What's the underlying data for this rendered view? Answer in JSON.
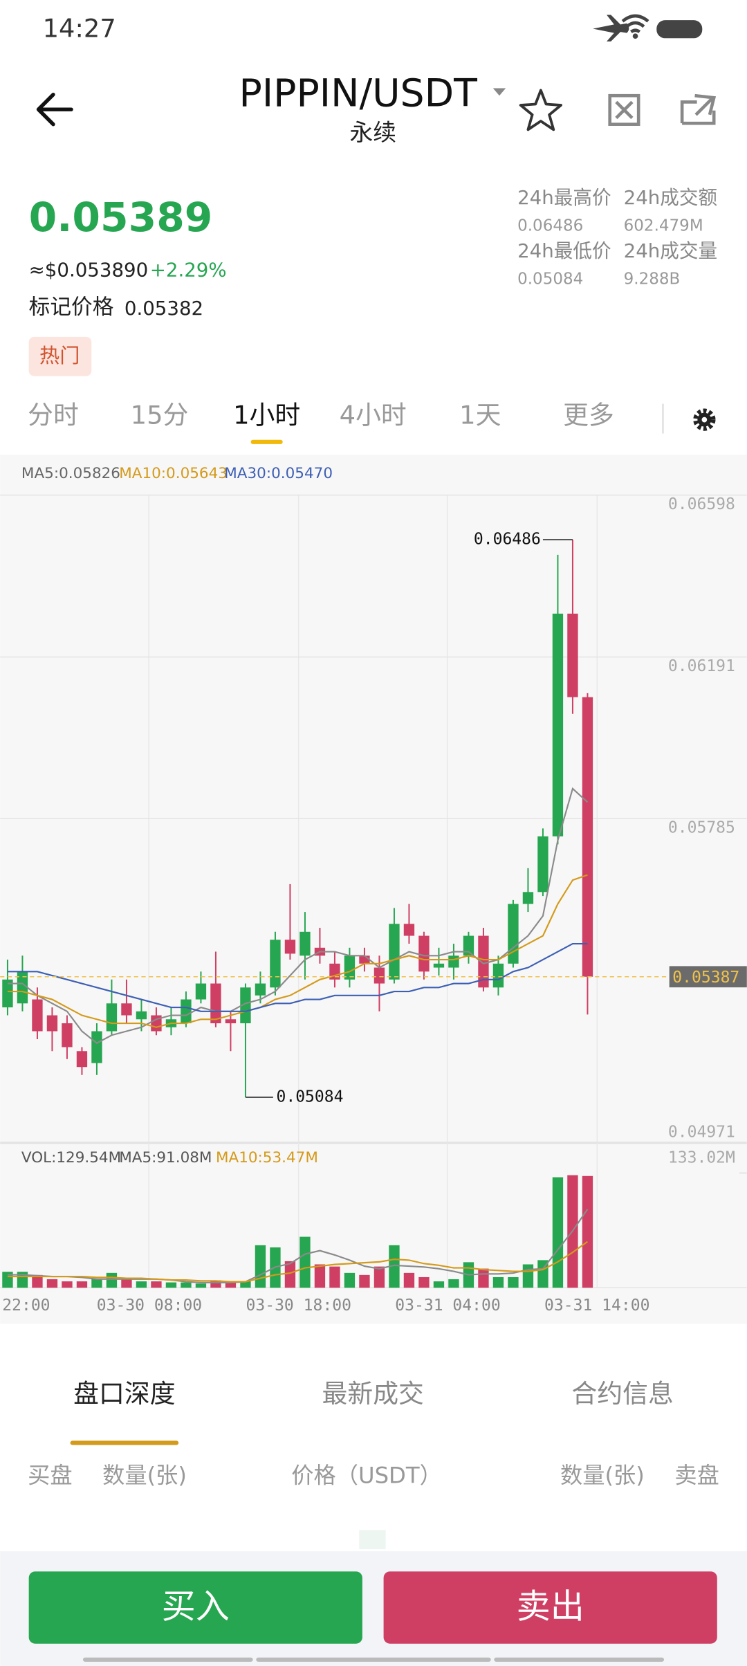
{
  "status_bar": {
    "time": "14:27"
  },
  "header": {
    "pair": "PIPPIN/USDT",
    "subtitle": "永续"
  },
  "price": {
    "last": "0.05389",
    "usd": "≈$0.053890",
    "change": "+2.29%",
    "mark_label": "标记价格",
    "mark_value": "0.05382",
    "tag": "热门"
  },
  "stats": [
    {
      "label": "24h最高价",
      "value": "0.06486"
    },
    {
      "label": "24h成交额",
      "value": "602.479M"
    },
    {
      "label": "24h最低价",
      "value": "0.05084"
    },
    {
      "label": "24h成交量",
      "value": "9.288B"
    }
  ],
  "intervals": [
    "分时",
    "15分",
    "1小时",
    "4小时",
    "1天",
    "更多"
  ],
  "active_interval": 2,
  "chart_data": {
    "type": "candlestick",
    "x_labels": [
      "22:00",
      "03-30 08:00",
      "03-30 18:00",
      "03-31 04:00",
      "03-31 14:00"
    ],
    "open": [
      0.0531,
      0.0532,
      0.0533,
      0.0529,
      0.0527,
      0.052,
      0.0517,
      0.0525,
      0.0532,
      0.0528,
      0.0529,
      0.0526,
      0.0527,
      0.0533,
      0.0537,
      0.0528,
      0.0527,
      0.0534,
      0.0536,
      0.0548,
      0.0544,
      0.0546,
      0.0542,
      0.0538,
      0.0544,
      0.0541,
      0.0538,
      0.0552,
      0.0549,
      0.0541,
      0.0541,
      0.0544,
      0.0549,
      0.0536,
      0.0542,
      0.0557,
      0.056,
      0.0574,
      0.063,
      0.0609
    ],
    "high": [
      0.0543,
      0.0544,
      0.0536,
      0.0531,
      0.0529,
      0.0521,
      0.0527,
      0.0538,
      0.0538,
      0.0533,
      0.0531,
      0.0531,
      0.0535,
      0.054,
      0.0545,
      0.053,
      0.0537,
      0.054,
      0.055,
      0.0562,
      0.0555,
      0.0551,
      0.0545,
      0.0546,
      0.0546,
      0.0544,
      0.0556,
      0.0557,
      0.055,
      0.0546,
      0.0547,
      0.055,
      0.0551,
      0.0544,
      0.0558,
      0.0566,
      0.0576,
      0.06448,
      0.06486,
      0.061
    ],
    "low": [
      0.0529,
      0.053,
      0.0523,
      0.052,
      0.0518,
      0.0514,
      0.0514,
      0.0524,
      0.0527,
      0.0525,
      0.0524,
      0.0524,
      0.0526,
      0.0532,
      0.0526,
      0.052,
      0.05084,
      0.0532,
      0.0534,
      0.0543,
      0.0538,
      0.0542,
      0.0536,
      0.0536,
      0.054,
      0.053,
      0.0537,
      0.0547,
      0.0538,
      0.0539,
      0.0538,
      0.0542,
      0.0535,
      0.0534,
      0.0541,
      0.0555,
      0.0559,
      0.0572,
      0.06048,
      0.05292
    ],
    "close": [
      0.0538,
      0.054,
      0.0525,
      0.0525,
      0.0521,
      0.0516,
      0.0525,
      0.0532,
      0.0529,
      0.053,
      0.0525,
      0.0528,
      0.0533,
      0.0537,
      0.0527,
      0.0527,
      0.0536,
      0.0537,
      0.0548,
      0.05445,
      0.055,
      0.0544,
      0.0538,
      0.0544,
      0.0542,
      0.0537,
      0.0552,
      0.0549,
      0.054,
      0.0542,
      0.0544,
      0.0549,
      0.0536,
      0.0542,
      0.0557,
      0.056,
      0.0574,
      0.063,
      0.0609,
      0.05387
    ],
    "up_color": "#26a650",
    "down_color": "#cf3f64",
    "series": [
      {
        "name": "MA5:0.05826",
        "color": "#8a8a8a",
        "values": [
          0.0537,
          0.0537,
          0.0534,
          0.0532,
          0.053,
          0.0525,
          0.0522,
          0.0524,
          0.0525,
          0.0526,
          0.0528,
          0.0529,
          0.0529,
          0.0531,
          0.053,
          0.053,
          0.0532,
          0.0533,
          0.0535,
          0.0539,
          0.0543,
          0.0545,
          0.0545,
          0.0544,
          0.0544,
          0.0541,
          0.0543,
          0.0545,
          0.0544,
          0.0544,
          0.0545,
          0.0545,
          0.0542,
          0.0543,
          0.0546,
          0.0549,
          0.0554,
          0.0573,
          0.0586,
          0.05826
        ]
      },
      {
        "name": "MA10:0.05643",
        "color": "#d49a1a",
        "values": [
          0.0535,
          0.0535,
          0.0534,
          0.0533,
          0.0531,
          0.0529,
          0.0528,
          0.0527,
          0.0527,
          0.0527,
          0.0526,
          0.0527,
          0.0527,
          0.0528,
          0.0528,
          0.0529,
          0.053,
          0.0531,
          0.0533,
          0.0534,
          0.0536,
          0.0538,
          0.0539,
          0.054,
          0.0542,
          0.0542,
          0.0543,
          0.0544,
          0.0543,
          0.0543,
          0.0543,
          0.0544,
          0.0543,
          0.0543,
          0.0545,
          0.0547,
          0.0549,
          0.0557,
          0.0563,
          0.05643
        ]
      },
      {
        "name": "MA30:0.05470",
        "color": "#3d5fb4",
        "values": [
          0.054,
          0.054,
          0.054,
          0.0539,
          0.0538,
          0.0537,
          0.0536,
          0.0535,
          0.0534,
          0.0533,
          0.0532,
          0.0531,
          0.0531,
          0.053,
          0.053,
          0.053,
          0.053,
          0.0531,
          0.0532,
          0.0532,
          0.0533,
          0.0533,
          0.0534,
          0.0534,
          0.0534,
          0.0534,
          0.0535,
          0.0535,
          0.0536,
          0.0536,
          0.0537,
          0.0537,
          0.0538,
          0.0538,
          0.054,
          0.0541,
          0.0543,
          0.0545,
          0.0547,
          0.0547
        ]
      }
    ],
    "ylim": [
      0.04971,
      0.06598
    ],
    "yticks": [
      0.06598,
      0.06191,
      0.05785,
      0.04971
    ],
    "grid": true,
    "last_price": 0.05387,
    "volume": {
      "values": [
        18.5,
        18.5,
        14.8,
        9.9,
        7.4,
        7.4,
        9.9,
        17.2,
        9.9,
        7.4,
        7.4,
        6.2,
        6.2,
        4.9,
        8.6,
        6.2,
        7.4,
        49.3,
        46.8,
        30.8,
        59.1,
        27.1,
        24.6,
        17.2,
        14.8,
        24.6,
        49.3,
        17.2,
        12.3,
        7.4,
        9.9,
        29.6,
        22.2,
        12.3,
        12.3,
        27.1,
        32,
        128.1,
        130.5,
        129.54
      ],
      "legend": "VOL:129.54M",
      "series": [
        {
          "name": "MA5:91.08M",
          "color": "#8a8a8a",
          "values": [
            15,
            15,
            14,
            13,
            13,
            12,
            10,
            10,
            10,
            10,
            10,
            9,
            7,
            6,
            6,
            6,
            7,
            15,
            24,
            28,
            39,
            43,
            38,
            32,
            25,
            22,
            26,
            25,
            24,
            22,
            19,
            15,
            16,
            16,
            17,
            21,
            22,
            44,
            66,
            91.08
          ]
        },
        {
          "name": "MA10:53.47M",
          "color": "#d49a1a",
          "values": [
            13,
            13,
            13,
            13,
            13,
            13,
            12,
            12,
            11,
            11,
            10,
            9,
            9,
            8,
            8,
            7,
            7,
            11,
            15,
            17,
            23,
            25,
            27,
            28,
            29,
            30,
            33,
            32,
            28,
            26,
            23,
            23,
            21,
            20,
            19,
            19,
            21,
            30,
            41,
            53.47
          ]
        }
      ],
      "ylim": [
        0,
        133.02
      ],
      "yticks": [
        {
          "value": 133.02,
          "label": "133.02M"
        }
      ]
    }
  },
  "tabs": [
    "盘口深度",
    "最新成交",
    "合约信息"
  ],
  "active_tab": 0,
  "order_header": [
    "买盘",
    "数量(张)",
    "价格（USDT）",
    "数量(张)",
    "卖盘"
  ],
  "buttons": {
    "buy": "买入",
    "sell": "卖出"
  }
}
